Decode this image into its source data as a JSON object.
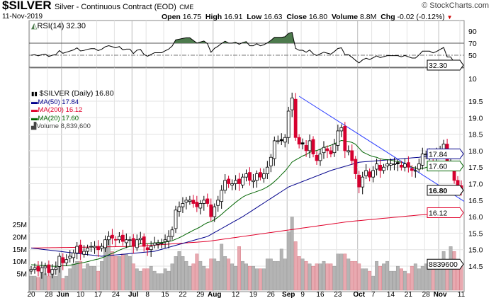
{
  "header": {
    "symbol": "$SILVER",
    "name": "Silver - Continuous Contract (EOD)",
    "exchange": "CME",
    "copyright": "© StockCharts.com",
    "date": "11-Nov-2019",
    "open_label": "Open",
    "open": "16.75",
    "high_label": "High",
    "high": "16.91",
    "low_label": "Low",
    "low": "16.63",
    "close_label": "Close",
    "close": "16.80",
    "volume_label": "Volume",
    "volume": "8.8M",
    "chg_label": "Chg",
    "chg": "-0.02 (-0.12%)"
  },
  "colors": {
    "up": "#000000",
    "down": "#d6002f",
    "ma50": "#00008b",
    "ma200": "#e0002a",
    "ma20": "#006400",
    "trend": "#2a3cff",
    "vol_up": "#b4b4b4",
    "vol_down": "#e8a9b0",
    "rsi_fill": "#4d7a4d"
  },
  "chart_data": {
    "type": "candlestick",
    "title": "$SILVER Silver - Continuous Contract (EOD) CME",
    "rsi": {
      "label": "RSI(14) 32.30",
      "last": "32.30",
      "ticks": [
        "90",
        "70",
        "50"
      ],
      "levels": [
        70,
        50,
        30
      ]
    },
    "legend": {
      "price": "$SILVER (Daily) 16.80",
      "ma50": "MA(50) 17.84",
      "ma200": "MA(200) 16.12",
      "ma20": "MA(20) 17.60",
      "volume": "Volume 8,839,600"
    },
    "last_values": {
      "ma50": "17.84",
      "ma20": "17.60",
      "close": "16.80",
      "ma200": "16.12",
      "volume": "8839600"
    },
    "price_ticks": [
      "10",
      "19.5",
      "19.0",
      "18.5",
      "18.0",
      "17.5",
      "17.0",
      "16.5",
      "16.0",
      "15.5",
      "15.0",
      "14.5"
    ],
    "volume_ticks": [
      "25M",
      "20M",
      "15M",
      "10M",
      "5M"
    ],
    "x_ticks": [
      {
        "label": "20",
        "i": 0,
        "month": false
      },
      {
        "label": "28",
        "i": 5,
        "month": false
      },
      {
        "label": "Jun",
        "i": 9,
        "month": true
      },
      {
        "label": "10",
        "i": 14,
        "month": false
      },
      {
        "label": "17",
        "i": 19,
        "month": false
      },
      {
        "label": "24",
        "i": 24,
        "month": false
      },
      {
        "label": "Jul",
        "i": 29,
        "month": true
      },
      {
        "label": "8",
        "i": 33,
        "month": false
      },
      {
        "label": "15",
        "i": 38,
        "month": false
      },
      {
        "label": "22",
        "i": 43,
        "month": false
      },
      {
        "label": "29",
        "i": 48,
        "month": false
      },
      {
        "label": "Aug",
        "i": 52,
        "month": true
      },
      {
        "label": "12",
        "i": 58,
        "month": false
      },
      {
        "label": "19",
        "i": 63,
        "month": false
      },
      {
        "label": "26",
        "i": 68,
        "month": false
      },
      {
        "label": "Sep",
        "i": 73,
        "month": true
      },
      {
        "label": "9",
        "i": 77,
        "month": false
      },
      {
        "label": "16",
        "i": 82,
        "month": false
      },
      {
        "label": "23",
        "i": 87,
        "month": false
      },
      {
        "label": "Oct",
        "i": 93,
        "month": true
      },
      {
        "label": "7",
        "i": 97,
        "month": false
      },
      {
        "label": "14",
        "i": 102,
        "month": false
      },
      {
        "label": "21",
        "i": 107,
        "month": false
      },
      {
        "label": "28",
        "i": 112,
        "month": false
      },
      {
        "label": "Nov",
        "i": 116,
        "month": true
      },
      {
        "label": "11",
        "i": 122,
        "month": false
      }
    ],
    "close": [
      14.4,
      14.45,
      14.35,
      14.45,
      14.5,
      14.3,
      14.4,
      14.45,
      14.8,
      14.6,
      14.7,
      14.8,
      14.9,
      15.1,
      14.9,
      14.95,
      15.05,
      15.1,
      15.1,
      15.0,
      15.1,
      15.3,
      15.4,
      15.35,
      15.3,
      15.4,
      15.25,
      15.3,
      15.3,
      15.1,
      15.3,
      15.35,
      15.1,
      15.0,
      15.1,
      15.2,
      15.2,
      15.2,
      15.3,
      15.4,
      15.6,
      16.2,
      16.3,
      16.4,
      16.5,
      16.5,
      16.4,
      16.3,
      16.4,
      16.5,
      16.4,
      16.0,
      16.3,
      16.5,
      16.8,
      17.1,
      17.0,
      17.0,
      17.1,
      17.0,
      17.2,
      17.3,
      17.1,
      17.1,
      17.3,
      17.2,
      17.3,
      17.5,
      17.8,
      18.3,
      18.3,
      18.3,
      18.4,
      19.2,
      19.6,
      18.4,
      18.2,
      18.2,
      18.0,
      18.3,
      17.9,
      17.7,
      17.9,
      18.1,
      18.0,
      17.9,
      18.2,
      18.6,
      18.7,
      18.0,
      18.0,
      17.7,
      17.3,
      16.9,
      17.2,
      17.4,
      17.2,
      17.4,
      17.6,
      17.4,
      17.5,
      17.6,
      17.6,
      17.6,
      17.6,
      17.5,
      17.6,
      17.5,
      17.4,
      17.4,
      17.6,
      17.9,
      17.9,
      17.9,
      17.8,
      17.9,
      18.05,
      18.2,
      17.6,
      17.6,
      17.1,
      16.9,
      16.8
    ],
    "volume_millions": [
      4,
      4,
      3.5,
      7,
      5,
      4,
      5,
      4,
      10,
      3,
      4,
      7,
      9,
      10,
      10,
      7,
      9,
      8,
      8,
      6,
      10,
      17,
      20,
      14,
      12,
      12,
      13,
      13,
      12,
      9,
      7,
      6,
      7,
      7,
      8,
      6,
      5,
      5,
      7,
      6,
      9,
      12,
      14,
      12,
      10,
      8,
      9,
      13,
      10,
      8,
      7,
      11,
      11,
      10,
      17,
      12,
      11,
      9,
      8,
      16,
      10,
      9,
      8,
      8,
      7,
      7,
      7,
      11,
      11,
      10,
      10,
      15,
      11,
      22,
      28,
      18,
      12,
      11,
      10,
      9,
      8,
      9,
      9,
      10,
      9,
      9,
      8,
      13,
      13,
      13,
      11,
      10,
      10,
      9,
      7,
      7,
      6,
      4,
      10,
      8,
      9,
      10,
      6,
      6,
      8,
      7,
      6,
      5,
      8,
      9,
      7,
      8,
      9,
      9,
      8,
      10,
      9,
      14,
      10,
      16,
      14,
      9,
      8.8396
    ],
    "ma50_points": [
      [
        0,
        15.05
      ],
      [
        20,
        14.8
      ],
      [
        35,
        14.95
      ],
      [
        50,
        15.4
      ],
      [
        60,
        16.0
      ],
      [
        73,
        16.9
      ],
      [
        85,
        17.4
      ],
      [
        93,
        17.65
      ],
      [
        110,
        17.8
      ],
      [
        118,
        17.95
      ],
      [
        122,
        17.84
      ]
    ],
    "ma200_points": [
      [
        0,
        15.05
      ],
      [
        30,
        15.1
      ],
      [
        50,
        15.25
      ],
      [
        70,
        15.55
      ],
      [
        90,
        15.85
      ],
      [
        110,
        16.05
      ],
      [
        122,
        16.12
      ]
    ],
    "trendline": [
      [
        76,
        19.65
      ],
      [
        122,
        16.55
      ]
    ],
    "price_range": [
      14.2,
      20.2
    ],
    "volume_range": [
      0,
      30
    ]
  }
}
